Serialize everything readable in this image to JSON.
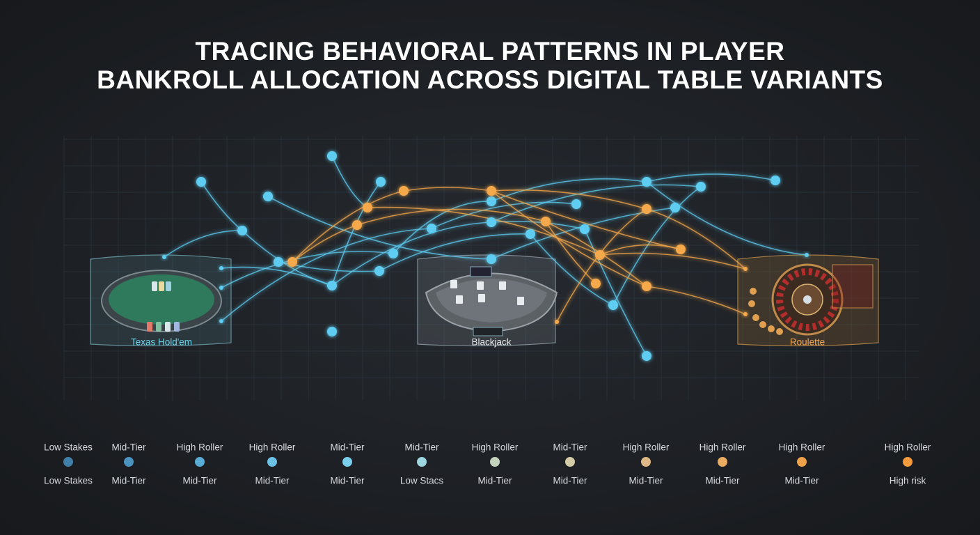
{
  "header": {
    "title": [
      "TRACING BEHAVIORAL PATTERNS IN PLAYER",
      "BANKROLL ALLOCATION ACROSS DIGITAL TABLE VARIANTS"
    ]
  },
  "tables": [
    {
      "label": "Texas Hold'em"
    },
    {
      "label": "Blackjack"
    },
    {
      "label": "Roulette"
    }
  ],
  "timeline": {
    "top_labels": [
      "Low Stakes",
      "Mid-Tier",
      "High Roller",
      "High Roller",
      "Mid-Tier",
      "Mid-Tier",
      "High Roller",
      "Mid-Tier",
      "High Roller",
      "High Roller",
      "High Roller",
      "High Roller"
    ],
    "bottom_labels": [
      "Low Stakes",
      "Mid-Tier",
      "Mid-Tier",
      "Mid-Tier",
      "Mid-Tier",
      "Low Stacs",
      "Mid-Tier",
      "Mid-Tier",
      "Mid-Tier",
      "Mid-Tier",
      "Mid-Tier",
      "High risk"
    ]
  }
}
